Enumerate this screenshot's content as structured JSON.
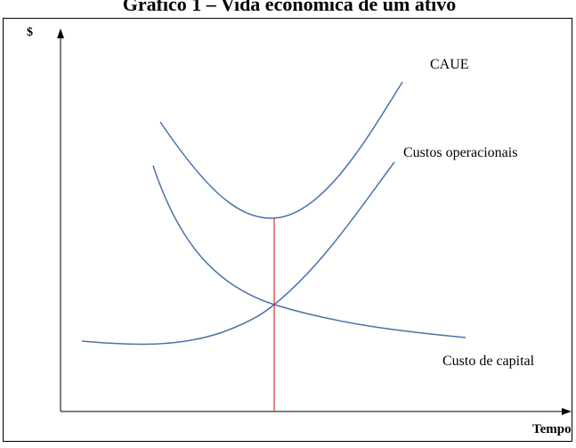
{
  "title": "Gráfico 1 – Vida econômica de um ativo",
  "axes": {
    "y_label": "$",
    "x_label": "Tempo"
  },
  "curves": [
    {
      "label": "CAUE"
    },
    {
      "label": "Custos operacionais"
    },
    {
      "label": "Custo de capital"
    }
  ]
}
